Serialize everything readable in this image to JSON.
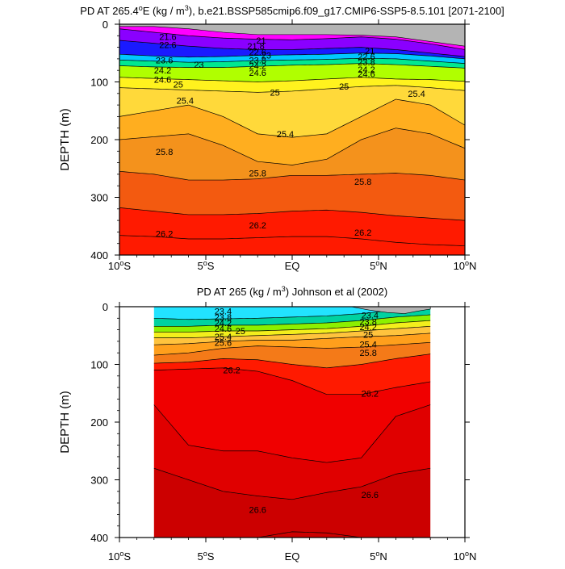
{
  "chart_data": [
    {
      "type": "contour",
      "title_parts": [
        "PD AT 265.4",
        "o",
        "E (kg / m",
        "3",
        "), b.e21.BSSP585cmip6.f09_g17.CMIP6-SSP5-8.5.101 [2071-2100]"
      ],
      "xlabel": "",
      "ylabel": "DEPTH (m)",
      "xlim": [
        -10,
        10
      ],
      "ylim": [
        400,
        0
      ],
      "x_ticks": [
        {
          "v": -10,
          "label": "10",
          "sup": "o",
          "post": "S"
        },
        {
          "v": -5,
          "label": "5",
          "sup": "o",
          "post": "S"
        },
        {
          "v": 0,
          "label": "EQ",
          "sup": "",
          "post": ""
        },
        {
          "v": 5,
          "label": "5",
          "sup": "o",
          "post": "N"
        },
        {
          "v": 10,
          "label": "10",
          "sup": "o",
          "post": "N"
        }
      ],
      "y_ticks": [
        "0",
        "100",
        "200",
        "300",
        "400"
      ],
      "y_tick_values": [
        0,
        100,
        200,
        300,
        400
      ],
      "data_x_range": [
        -10,
        10
      ],
      "x": [
        -10,
        -8,
        -6,
        -4,
        -2,
        0,
        2,
        4,
        6,
        8,
        10
      ],
      "levels": [
        {
          "value": 21.0,
          "color": "#ff00ff",
          "depth": [
            8,
            14,
            20,
            24,
            26,
            27,
            25,
            22,
            26,
            34,
            44
          ]
        },
        {
          "value": 22.0,
          "color": "#8a00ff",
          "depth": [
            28,
            33,
            38,
            42,
            44,
            44,
            42,
            40,
            44,
            50,
            56
          ]
        },
        {
          "value": 23.0,
          "color": "#1a1aff",
          "depth": [
            52,
            55,
            57,
            56,
            54,
            53,
            52,
            50,
            51,
            55,
            60
          ]
        },
        {
          "value": 24.0,
          "color": "#00c8ff",
          "depth": [
            62,
            64,
            66,
            65,
            63,
            62,
            61,
            59,
            60,
            64,
            68
          ]
        },
        {
          "value": 24.6,
          "color": "#00e890",
          "depth": [
            72,
            74,
            75,
            75,
            73,
            71,
            70,
            68,
            70,
            73,
            76
          ]
        },
        {
          "value": 25.0,
          "color": "#b0ff00",
          "depth": [
            92,
            94,
            96,
            98,
            100,
            98,
            95,
            92,
            95,
            96,
            99
          ]
        },
        {
          "value": 25.2,
          "color": "#fff21e",
          "depth": [
            110,
            112,
            114,
            116,
            118,
            116,
            112,
            108,
            106,
            110,
            115
          ]
        },
        {
          "value": 25.4,
          "color": "#ffd93a",
          "depth": [
            160,
            150,
            140,
            160,
            190,
            196,
            190,
            160,
            130,
            140,
            175
          ]
        },
        {
          "value": 25.6,
          "color": "#ffae1f",
          "depth": [
            200,
            195,
            190,
            210,
            238,
            244,
            234,
            200,
            180,
            190,
            215
          ]
        },
        {
          "value": 25.8,
          "color": "#f4921c",
          "depth": [
            255,
            260,
            270,
            270,
            268,
            262,
            262,
            260,
            258,
            262,
            270
          ]
        },
        {
          "value": 26.0,
          "color": "#f35a10",
          "depth": [
            318,
            324,
            330,
            330,
            328,
            324,
            322,
            326,
            332,
            336,
            340
          ]
        },
        {
          "value": 26.2,
          "color": "#ff1a00",
          "depth": [
            366,
            368,
            372,
            372,
            370,
            368,
            368,
            372,
            378,
            382,
            384
          ]
        }
      ],
      "surface_cap": {
        "value": 20.6,
        "color": "#b4b4b4",
        "x": [
          -10,
          -8,
          -6,
          -5,
          -4,
          -2,
          0,
          2,
          4,
          6,
          8,
          10
        ],
        "depth": [
          4,
          4,
          8,
          11,
          14,
          18,
          18,
          18,
          19,
          22,
          30,
          38
        ]
      },
      "labels": [
        {
          "x": -7.2,
          "y": 22,
          "text": "21.6"
        },
        {
          "x": -7.2,
          "y": 36,
          "text": "22.6"
        },
        {
          "x": -7.4,
          "y": 62,
          "text": "23.6"
        },
        {
          "x": -5.4,
          "y": 70,
          "text": "23"
        },
        {
          "x": -7.5,
          "y": 80,
          "text": "24.2"
        },
        {
          "x": -7.5,
          "y": 96,
          "text": "24.6"
        },
        {
          "x": -6.6,
          "y": 104,
          "text": "25"
        },
        {
          "x": -6.2,
          "y": 132,
          "text": "25.4"
        },
        {
          "x": -1.8,
          "y": 28,
          "text": "21"
        },
        {
          "x": -2.1,
          "y": 38,
          "text": "21.8"
        },
        {
          "x": -2.0,
          "y": 48,
          "text": "22.6"
        },
        {
          "x": -1.5,
          "y": 54,
          "text": "23"
        },
        {
          "x": -2.0,
          "y": 62,
          "text": "23.8"
        },
        {
          "x": -2.0,
          "y": 72,
          "text": "24.2"
        },
        {
          "x": -2.0,
          "y": 84,
          "text": "24.6"
        },
        {
          "x": -1.0,
          "y": 118,
          "text": "25"
        },
        {
          "x": -0.4,
          "y": 190,
          "text": "25.4"
        },
        {
          "x": -2.0,
          "y": 258,
          "text": "25.8"
        },
        {
          "x": -2.0,
          "y": 348,
          "text": "26.2"
        },
        {
          "x": 4.5,
          "y": 46,
          "text": "21"
        },
        {
          "x": 4.3,
          "y": 56,
          "text": "22.6"
        },
        {
          "x": 4.3,
          "y": 66,
          "text": "23.8"
        },
        {
          "x": 4.3,
          "y": 78,
          "text": "24.2"
        },
        {
          "x": 4.3,
          "y": 86,
          "text": "24.6"
        },
        {
          "x": 3.0,
          "y": 108,
          "text": "25"
        },
        {
          "x": 7.2,
          "y": 120,
          "text": "25.4"
        },
        {
          "x": 4.1,
          "y": 273,
          "text": "25.8"
        },
        {
          "x": 4.1,
          "y": 361,
          "text": "26.2"
        },
        {
          "x": -7.4,
          "y": 221,
          "text": "25.8"
        },
        {
          "x": -7.4,
          "y": 363,
          "text": "26.2"
        }
      ]
    },
    {
      "type": "contour",
      "title_parts": [
        "PD AT 265 (kg / m",
        "3",
        ") Johnson et al (2002)"
      ],
      "xlabel": "",
      "ylabel": "DEPTH (m)",
      "xlim": [
        -10,
        10
      ],
      "ylim": [
        400,
        0
      ],
      "x_ticks": [
        {
          "v": -10,
          "label": "10",
          "sup": "o",
          "post": "S"
        },
        {
          "v": -5,
          "label": "5",
          "sup": "o",
          "post": "S"
        },
        {
          "v": 0,
          "label": "EQ",
          "sup": "",
          "post": ""
        },
        {
          "v": 5,
          "label": "5",
          "sup": "o",
          "post": "N"
        },
        {
          "v": 10,
          "label": "10",
          "sup": "o",
          "post": "N"
        }
      ],
      "y_ticks": [
        "0",
        "100",
        "200",
        "300",
        "400"
      ],
      "y_tick_values": [
        0,
        100,
        200,
        300,
        400
      ],
      "data_x_range": [
        -8,
        8
      ],
      "x": [
        -8,
        -6,
        -4,
        -2,
        0,
        2,
        4,
        6,
        8
      ],
      "levels": [
        {
          "value": 23.0,
          "color": "#22e3ff",
          "depth": [
            20,
            22,
            21,
            20,
            18,
            16,
            12,
            6,
            4
          ]
        },
        {
          "value": 24.0,
          "color": "#00d2a0",
          "depth": [
            34,
            34,
            32,
            32,
            30,
            28,
            24,
            18,
            14
          ]
        },
        {
          "value": 24.6,
          "color": "#8cf000",
          "depth": [
            44,
            44,
            42,
            42,
            40,
            38,
            34,
            28,
            24
          ]
        },
        {
          "value": 25.0,
          "color": "#f3ee1c",
          "depth": [
            54,
            54,
            52,
            50,
            48,
            46,
            42,
            38,
            34
          ]
        },
        {
          "value": 25.4,
          "color": "#ffc33d",
          "depth": [
            66,
            64,
            60,
            58,
            58,
            55,
            52,
            50,
            46
          ]
        },
        {
          "value": 25.6,
          "color": "#ff9f1c",
          "depth": [
            84,
            80,
            72,
            68,
            70,
            72,
            70,
            66,
            62
          ]
        },
        {
          "value": 25.8,
          "color": "#f47a18",
          "depth": [
            98,
            96,
            90,
            92,
            100,
            106,
            100,
            90,
            82
          ]
        },
        {
          "value": 26.0,
          "color": "#ff1a00",
          "depth": [
            110,
            108,
            106,
            112,
            128,
            152,
            152,
            140,
            130
          ]
        },
        {
          "value": 26.2,
          "color": "#f00000",
          "depth": [
            170,
            240,
            250,
            250,
            262,
            270,
            262,
            190,
            170
          ]
        },
        {
          "value": 26.4,
          "color": "#e00000",
          "depth": [
            280,
            300,
            320,
            328,
            334,
            322,
            312,
            290,
            280
          ]
        },
        {
          "value": 26.6,
          "color": "#cc0000",
          "depth": [
            400,
            400,
            400,
            400,
            390,
            392,
            400,
            400,
            400
          ]
        }
      ],
      "surface_cap": {
        "value": 22.0,
        "color": "#b4b4b4",
        "x": [
          3.4,
          4.5,
          5.5,
          6.5,
          7.2,
          8
        ],
        "depth": [
          0,
          6,
          10,
          12,
          8,
          4
        ]
      },
      "labels": [
        {
          "x": -4.0,
          "y": 8,
          "text": "23.4"
        },
        {
          "x": -4.0,
          "y": 18,
          "text": "23.8"
        },
        {
          "x": -4.0,
          "y": 28,
          "text": "24.2"
        },
        {
          "x": -4.0,
          "y": 38,
          "text": "24.6"
        },
        {
          "x": -3.0,
          "y": 42,
          "text": "25"
        },
        {
          "x": -4.0,
          "y": 52,
          "text": "25.4"
        },
        {
          "x": -4.0,
          "y": 62,
          "text": "25.6"
        },
        {
          "x": -3.5,
          "y": 110,
          "text": "26.2"
        },
        {
          "x": 4.5,
          "y": 15,
          "text": "23.4"
        },
        {
          "x": 4.4,
          "y": 26,
          "text": "23.8"
        },
        {
          "x": 4.4,
          "y": 35,
          "text": "24.2"
        },
        {
          "x": 4.4,
          "y": 48,
          "text": "25"
        },
        {
          "x": 4.4,
          "y": 65,
          "text": "25.4"
        },
        {
          "x": 4.4,
          "y": 80,
          "text": "25.8"
        },
        {
          "x": 4.5,
          "y": 150,
          "text": "26.2"
        },
        {
          "x": -2.0,
          "y": 352,
          "text": "26.6"
        },
        {
          "x": 4.5,
          "y": 326,
          "text": "26.6"
        }
      ]
    }
  ]
}
